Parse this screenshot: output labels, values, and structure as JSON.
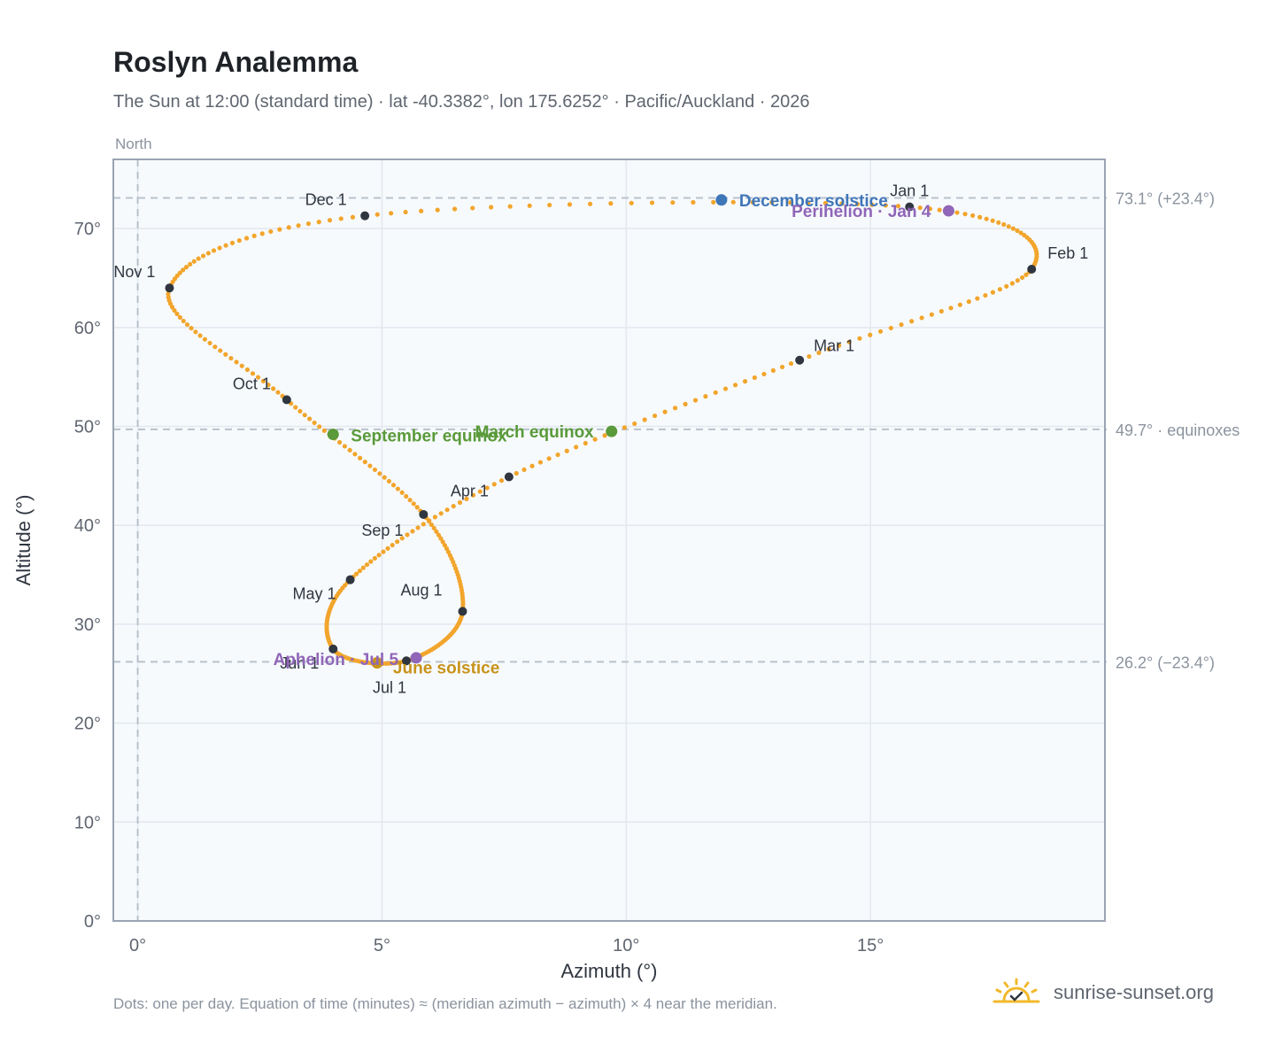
{
  "title": "Roslyn Analemma",
  "subtitle": "The Sun at 12:00 (standard time) · lat -40.3382°, lon 175.6252° · Pacific/Auckland · 2026",
  "footnote": "Dots: one per day. Equation of time (minutes) ≈ (meridian azimuth − azimuth) × 4 near the meridian.",
  "brand": {
    "text": "sunrise-sunset.org",
    "icon": "sun-logo-icon"
  },
  "colors": {
    "path": "#f2a52c",
    "month_marker": "#2f3640",
    "solstice_dec": "#3f76b8",
    "solstice_jun": "#c8931a",
    "equinox": "#5a9a3a",
    "aphelion_perihelion": "#9066b8",
    "reference_line": "#b8c2cc",
    "plot_bg": "#f7fafd",
    "axis": "#9aa4b2"
  },
  "chart_data": {
    "type": "scatter",
    "title": "Roslyn Analemma",
    "xlabel": "Azimuth (°)",
    "ylabel": "Altitude (°)",
    "xlim": [
      -0.5,
      19.8
    ],
    "ylim": [
      0,
      77
    ],
    "x_ticks": [
      0,
      5,
      10,
      15
    ],
    "x_tick_labels": [
      "0°",
      "5°",
      "10°",
      "15°"
    ],
    "y_ticks": [
      0,
      10,
      20,
      30,
      40,
      50,
      60,
      70
    ],
    "y_tick_labels": [
      "0°",
      "10°",
      "20°",
      "30°",
      "40°",
      "50°",
      "60°",
      "70°"
    ],
    "grid": true,
    "north_label": "North",
    "meridian_azimuth": 0,
    "reference_lines": [
      {
        "y": 73.1,
        "label": "73.1° (+23.4°)"
      },
      {
        "y": 49.7,
        "label": "49.7° · equinoxes"
      },
      {
        "y": 26.2,
        "label": "26.2° (−23.4°)"
      }
    ],
    "path_anchor_points": [
      {
        "day": 1,
        "az": 15.8,
        "alt": 72.2
      },
      {
        "day": 32,
        "az": 18.3,
        "alt": 65.9
      },
      {
        "day": 60,
        "az": 13.55,
        "alt": 56.7
      },
      {
        "day": 91,
        "az": 7.6,
        "alt": 44.9
      },
      {
        "day": 121,
        "az": 4.35,
        "alt": 34.5
      },
      {
        "day": 152,
        "az": 4.0,
        "alt": 27.5
      },
      {
        "day": 182,
        "az": 5.5,
        "alt": 26.3
      },
      {
        "day": 213,
        "az": 6.65,
        "alt": 31.3
      },
      {
        "day": 244,
        "az": 5.85,
        "alt": 41.1
      },
      {
        "day": 274,
        "az": 3.05,
        "alt": 52.7
      },
      {
        "day": 305,
        "az": 0.65,
        "alt": 64.0
      },
      {
        "day": 335,
        "az": 4.65,
        "alt": 71.3
      },
      {
        "day": 366,
        "az": 15.8,
        "alt": 72.2
      }
    ],
    "month_markers": [
      {
        "label": "Jan 1",
        "az": 15.8,
        "alt": 72.2
      },
      {
        "label": "Feb 1",
        "az": 18.3,
        "alt": 65.9
      },
      {
        "label": "Mar 1",
        "az": 13.55,
        "alt": 56.7
      },
      {
        "label": "Apr 1",
        "az": 7.6,
        "alt": 44.9
      },
      {
        "label": "May 1",
        "az": 4.35,
        "alt": 34.5
      },
      {
        "label": "Jun 1",
        "az": 4.0,
        "alt": 27.5
      },
      {
        "label": "Jul 1",
        "az": 5.5,
        "alt": 26.3
      },
      {
        "label": "Aug 1",
        "az": 6.65,
        "alt": 31.3
      },
      {
        "label": "Sep 1",
        "az": 5.85,
        "alt": 41.1
      },
      {
        "label": "Oct 1",
        "az": 3.05,
        "alt": 52.7
      },
      {
        "label": "Nov 1",
        "az": 0.65,
        "alt": 64.0
      },
      {
        "label": "Dec 1",
        "az": 4.65,
        "alt": 71.3
      }
    ],
    "events": [
      {
        "label": "December solstice",
        "az": 11.95,
        "alt": 72.9,
        "color": "#3f76b8"
      },
      {
        "label": "Perihelion · Jan 4",
        "az": 16.6,
        "alt": 71.8,
        "color": "#9066b8"
      },
      {
        "label": "March equinox",
        "az": 9.7,
        "alt": 49.5,
        "color": "#5a9a3a"
      },
      {
        "label": "September equinox",
        "az": 4.0,
        "alt": 49.2,
        "color": "#5a9a3a"
      },
      {
        "label": "June solstice",
        "az": 4.9,
        "alt": 26.1,
        "color": "#c8931a"
      },
      {
        "label": "Aphelion · Jul 5",
        "az": 5.7,
        "alt": 26.6,
        "color": "#9066b8"
      }
    ]
  }
}
